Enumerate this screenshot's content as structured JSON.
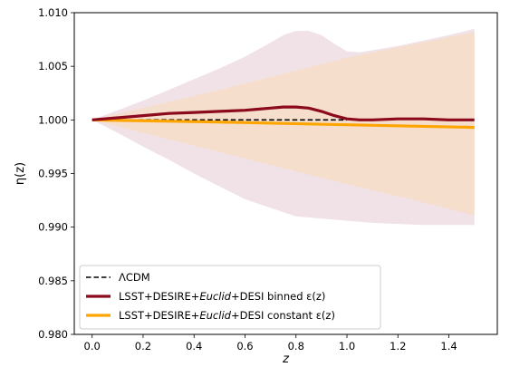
{
  "chart_data": {
    "type": "line",
    "xlabel": "z",
    "ylabel": "η(z)",
    "xlim": [
      -0.07,
      1.59
    ],
    "ylim": [
      0.98,
      1.01
    ],
    "xticks": [
      0.0,
      0.2,
      0.4,
      0.6,
      0.8,
      1.0,
      1.2,
      1.4
    ],
    "xtick_labels": [
      "0.0",
      "0.2",
      "0.4",
      "0.6",
      "0.8",
      "1.0",
      "1.2",
      "1.4"
    ],
    "yticks": [
      0.98,
      0.985,
      0.99,
      0.995,
      1.0,
      1.005,
      1.01
    ],
    "ytick_labels": [
      "0.980",
      "0.985",
      "0.990",
      "0.995",
      "1.000",
      "1.005",
      "1.010"
    ],
    "grid": false,
    "legend_position": "lower-left",
    "bands": [
      {
        "color": "#eedde3",
        "opacity": 0.85,
        "x": [
          0.0,
          0.1,
          0.2,
          0.3,
          0.4,
          0.5,
          0.6,
          0.7,
          0.75,
          0.8,
          0.85,
          0.9,
          0.95,
          1.0,
          1.05,
          1.1,
          1.2,
          1.3,
          1.4,
          1.5
        ],
        "upper": [
          1.0,
          1.0009,
          1.0018,
          1.0028,
          1.0038,
          1.0048,
          1.0059,
          1.0072,
          1.0079,
          1.0083,
          1.0083,
          1.0079,
          1.0071,
          1.0064,
          1.0063,
          1.0065,
          1.0069,
          1.0074,
          1.0079,
          1.0085
        ],
        "lower": [
          1.0,
          0.9988,
          0.9975,
          0.9963,
          0.995,
          0.9938,
          0.9926,
          0.9918,
          0.9914,
          0.991,
          0.9909,
          0.9908,
          0.9907,
          0.9906,
          0.9905,
          0.9904,
          0.9903,
          0.9902,
          0.9902,
          0.9902
        ]
      },
      {
        "color": "#f7ddc7",
        "opacity": 0.85,
        "x": [
          0.0,
          0.25,
          0.5,
          0.75,
          1.0,
          1.25,
          1.5
        ],
        "upper": [
          1.0,
          1.0014,
          1.0028,
          1.0043,
          1.0058,
          1.007,
          1.0082
        ],
        "lower": [
          1.0,
          0.9985,
          0.997,
          0.9955,
          0.994,
          0.9926,
          0.9911
        ]
      }
    ],
    "series": [
      {
        "name": "ΛCDM",
        "color": "#000000",
        "style": "dashed",
        "x": [
          0.0,
          1.0
        ],
        "y": [
          1.0,
          1.0
        ]
      },
      {
        "name": "LSST+DESIRE+Euclid+DESI binned ε(z)",
        "color": "#8b0a1e",
        "style": "solid",
        "x": [
          0.0,
          0.1,
          0.2,
          0.3,
          0.4,
          0.5,
          0.6,
          0.65,
          0.7,
          0.75,
          0.8,
          0.85,
          0.9,
          0.95,
          1.0,
          1.05,
          1.1,
          1.2,
          1.3,
          1.4,
          1.5
        ],
        "y": [
          1.0,
          1.0002,
          1.0004,
          1.0006,
          1.0007,
          1.0008,
          1.0009,
          1.001,
          1.0011,
          1.0012,
          1.0012,
          1.0011,
          1.0008,
          1.0004,
          1.0001,
          1.0,
          1.0,
          1.0001,
          1.0001,
          1.0,
          1.0
        ]
      },
      {
        "name": "LSST+DESIRE+Euclid+DESI constant ε(z)",
        "color": "#ffa500",
        "style": "solid",
        "x": [
          0.0,
          0.5,
          1.0,
          1.5
        ],
        "y": [
          1.0,
          0.9998,
          0.99955,
          0.9993
        ]
      }
    ],
    "legend": [
      {
        "pre": "ΛCDM",
        "em": "",
        "post": ""
      },
      {
        "pre": "LSST+DESIRE+",
        "em": "Euclid",
        "post": "+DESI binned ε(z)"
      },
      {
        "pre": "LSST+DESIRE+",
        "em": "Euclid",
        "post": "+DESI constant ε(z)"
      }
    ]
  }
}
